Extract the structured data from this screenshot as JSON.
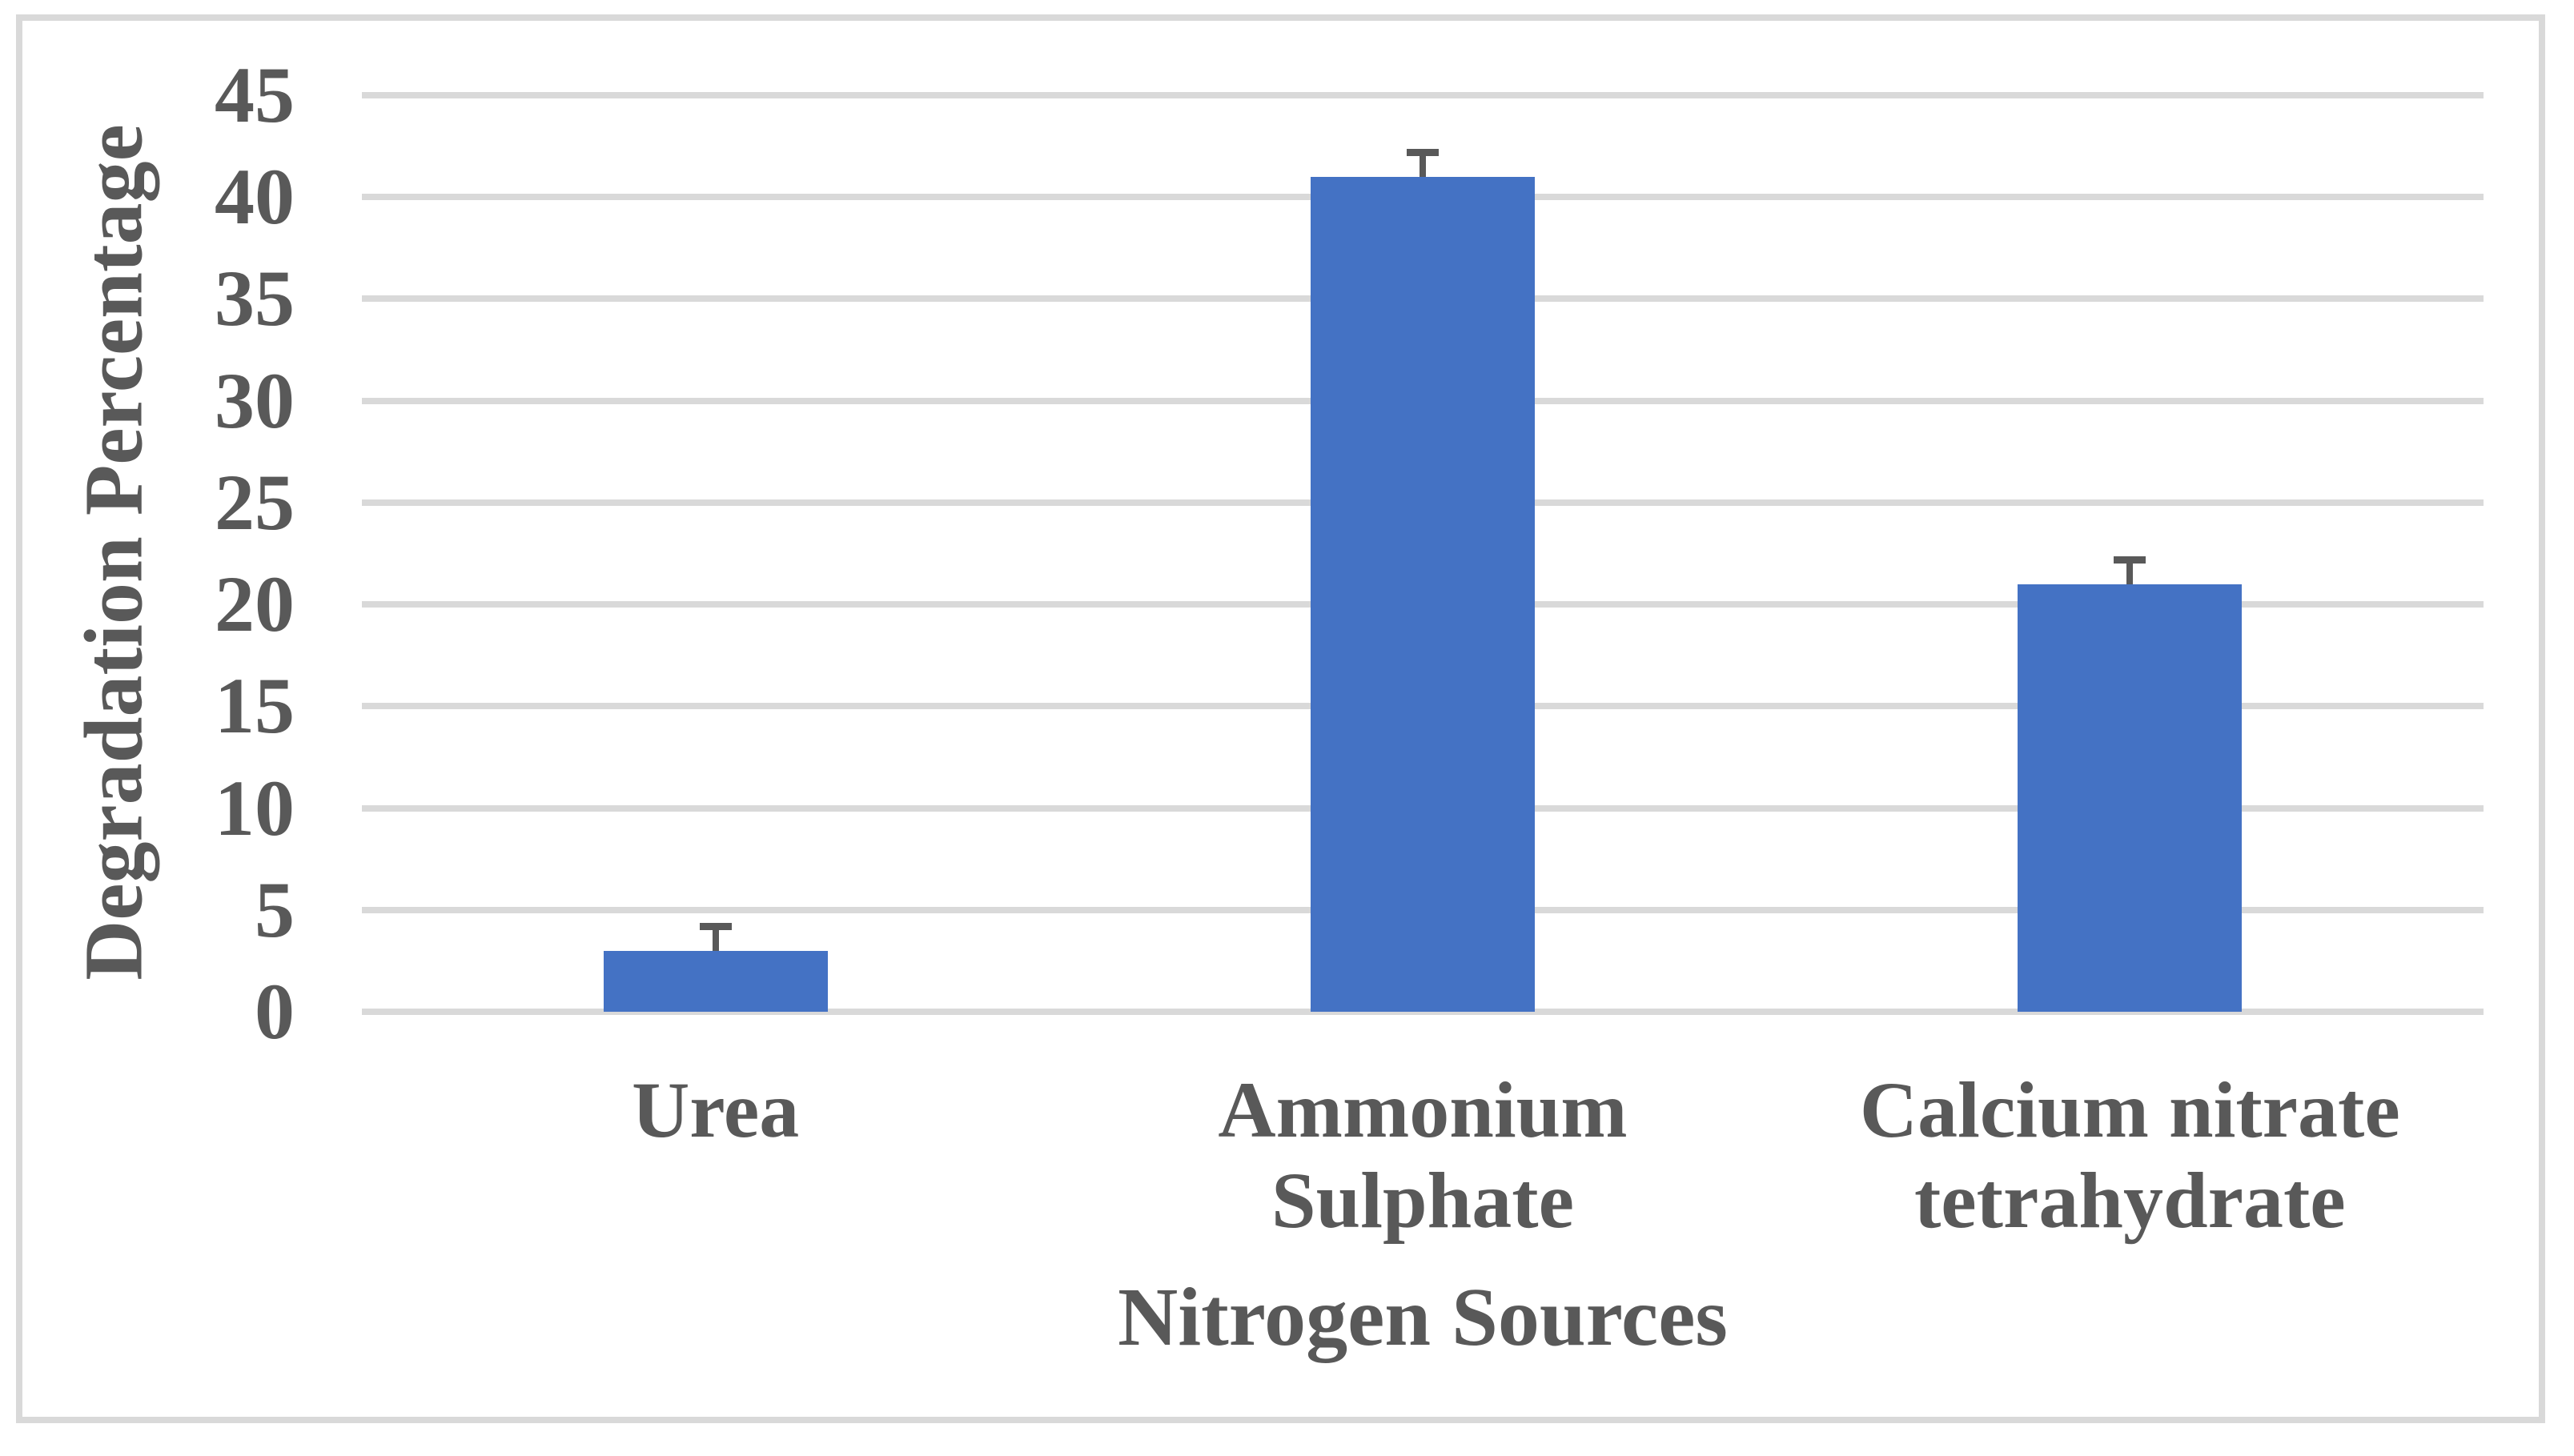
{
  "chart_data": {
    "type": "bar",
    "title": "",
    "xlabel": "Nitrogen Sources",
    "ylabel": "Degradation Percentage",
    "categories": [
      "Urea",
      "Ammonium Sulphate",
      "Calcium nitrate tetrahydrate"
    ],
    "category_lines": [
      [
        "Urea"
      ],
      [
        "Ammonium",
        "Sulphate"
      ],
      [
        "Calcium nitrate",
        "tetrahydrate"
      ]
    ],
    "values": [
      3,
      41,
      21
    ],
    "error_plus": [
      1.2,
      1.2,
      1.2
    ],
    "ylim": [
      0,
      45
    ],
    "yticks": [
      0,
      5,
      10,
      15,
      20,
      25,
      30,
      35,
      40,
      45
    ],
    "grid": "horizontal",
    "legend_position": "none",
    "colors": {
      "bar": "#4472C4",
      "gridline": "#D9D9D9",
      "frame": "#D9D9D9",
      "text": "#595959",
      "error_bar": "#595959"
    }
  }
}
